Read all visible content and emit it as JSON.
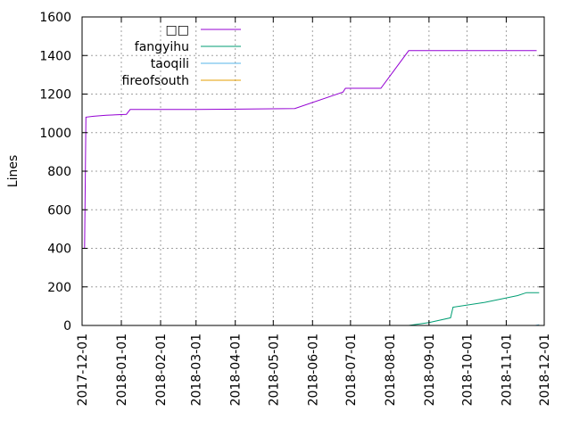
{
  "chart_data": {
    "type": "line",
    "ylabel": "Lines",
    "xlabel": "",
    "ylim": [
      0,
      1600
    ],
    "xlim": [
      "2017-12-01",
      "2018-12-01"
    ],
    "grid": true,
    "legend_position": "top-left",
    "y_ticks": [
      "0",
      "200",
      "400",
      "600",
      "800",
      "1000",
      "1200",
      "1400",
      "1600"
    ],
    "x_ticks": [
      "2017-12-01",
      "2018-01-01",
      "2018-02-01",
      "2018-03-01",
      "2018-04-01",
      "2018-05-01",
      "2018-06-01",
      "2018-07-01",
      "2018-08-01",
      "2018-09-01",
      "2018-10-01",
      "2018-11-01",
      "2018-12-01"
    ],
    "series": [
      {
        "name": "□□",
        "color": "#9400d3",
        "points": [
          [
            "2017-12-03",
            400
          ],
          [
            "2017-12-04",
            1080
          ],
          [
            "2017-12-10",
            1085
          ],
          [
            "2017-12-20",
            1090
          ],
          [
            "2018-01-05",
            1095
          ],
          [
            "2018-01-08",
            1120
          ],
          [
            "2018-03-01",
            1120
          ],
          [
            "2018-05-18",
            1125
          ],
          [
            "2018-06-25",
            1210
          ],
          [
            "2018-06-27",
            1230
          ],
          [
            "2018-07-25",
            1230
          ],
          [
            "2018-08-16",
            1425
          ],
          [
            "2018-11-25",
            1425
          ]
        ]
      },
      {
        "name": "fangyihu",
        "color": "#009e73",
        "points": [
          [
            "2018-08-16",
            0
          ],
          [
            "2018-09-01",
            15
          ],
          [
            "2018-09-18",
            40
          ],
          [
            "2018-09-20",
            95
          ],
          [
            "2018-10-15",
            120
          ],
          [
            "2018-11-10",
            155
          ],
          [
            "2018-11-17",
            170
          ],
          [
            "2018-11-27",
            170
          ]
        ]
      },
      {
        "name": "taoqili",
        "color": "#56b4e9",
        "points": [
          [
            "2018-11-24",
            0
          ],
          [
            "2018-11-27",
            4
          ]
        ]
      },
      {
        "name": "fireofsouth",
        "color": "#e69f00",
        "points": [
          [
            "2018-11-26",
            0
          ],
          [
            "2018-11-27",
            1
          ]
        ]
      }
    ]
  }
}
